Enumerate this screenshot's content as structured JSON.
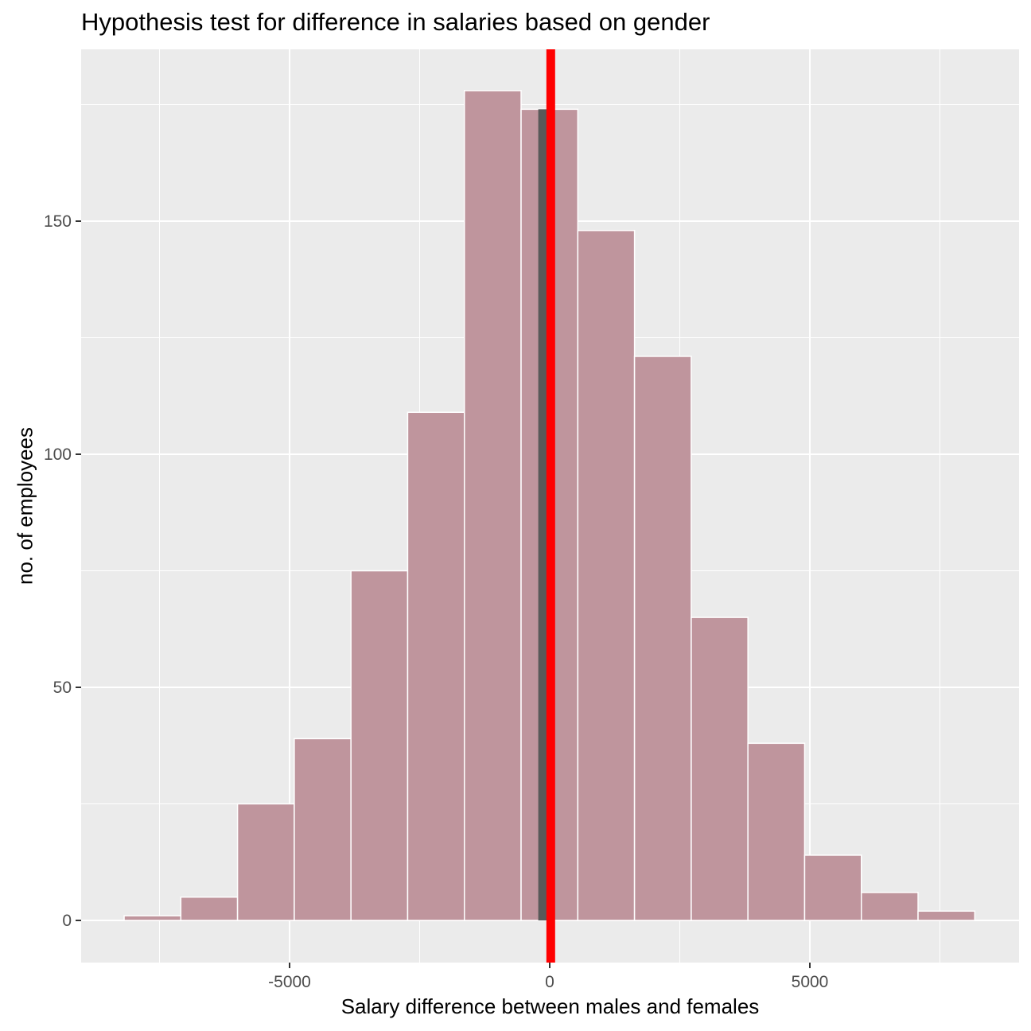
{
  "chart_data": {
    "type": "bar",
    "title": "Hypothesis test for difference in salaries based on gender",
    "xlabel": "Salary difference between males and females",
    "ylabel": "no. of employees",
    "xlim": [
      -9000,
      9000
    ],
    "ylim": [
      -9,
      187
    ],
    "x_ticks": [
      -5000,
      0,
      5000
    ],
    "y_ticks": [
      0,
      50,
      100,
      150
    ],
    "grid": true,
    "bins": [
      {
        "start": -8180,
        "end": -7090,
        "count": 1
      },
      {
        "start": -7090,
        "end": -6000,
        "count": 5
      },
      {
        "start": -6000,
        "end": -4910,
        "count": 25
      },
      {
        "start": -4910,
        "end": -3820,
        "count": 39
      },
      {
        "start": -3820,
        "end": -2730,
        "count": 75
      },
      {
        "start": -2730,
        "end": -1640,
        "count": 109
      },
      {
        "start": -1640,
        "end": -550,
        "count": 178
      },
      {
        "start": -550,
        "end": 540,
        "count": 174
      },
      {
        "start": 540,
        "end": 1630,
        "count": 148
      },
      {
        "start": 1630,
        "end": 2720,
        "count": 121
      },
      {
        "start": 2720,
        "end": 3810,
        "count": 65
      },
      {
        "start": 3810,
        "end": 4900,
        "count": 38
      },
      {
        "start": 4900,
        "end": 5990,
        "count": 14
      },
      {
        "start": 5990,
        "end": 7080,
        "count": 6
      },
      {
        "start": 7080,
        "end": 8170,
        "count": 2
      }
    ],
    "shaded_region": {
      "from": -220,
      "to": 20
    },
    "observed_difference": 20,
    "colors": {
      "panel": "#ebebeb",
      "grid": "#ffffff",
      "bar_fill": "#bf959d",
      "bar_outline": "#ffffff",
      "shade": "#595959",
      "observed_line": "#ff0000"
    }
  }
}
